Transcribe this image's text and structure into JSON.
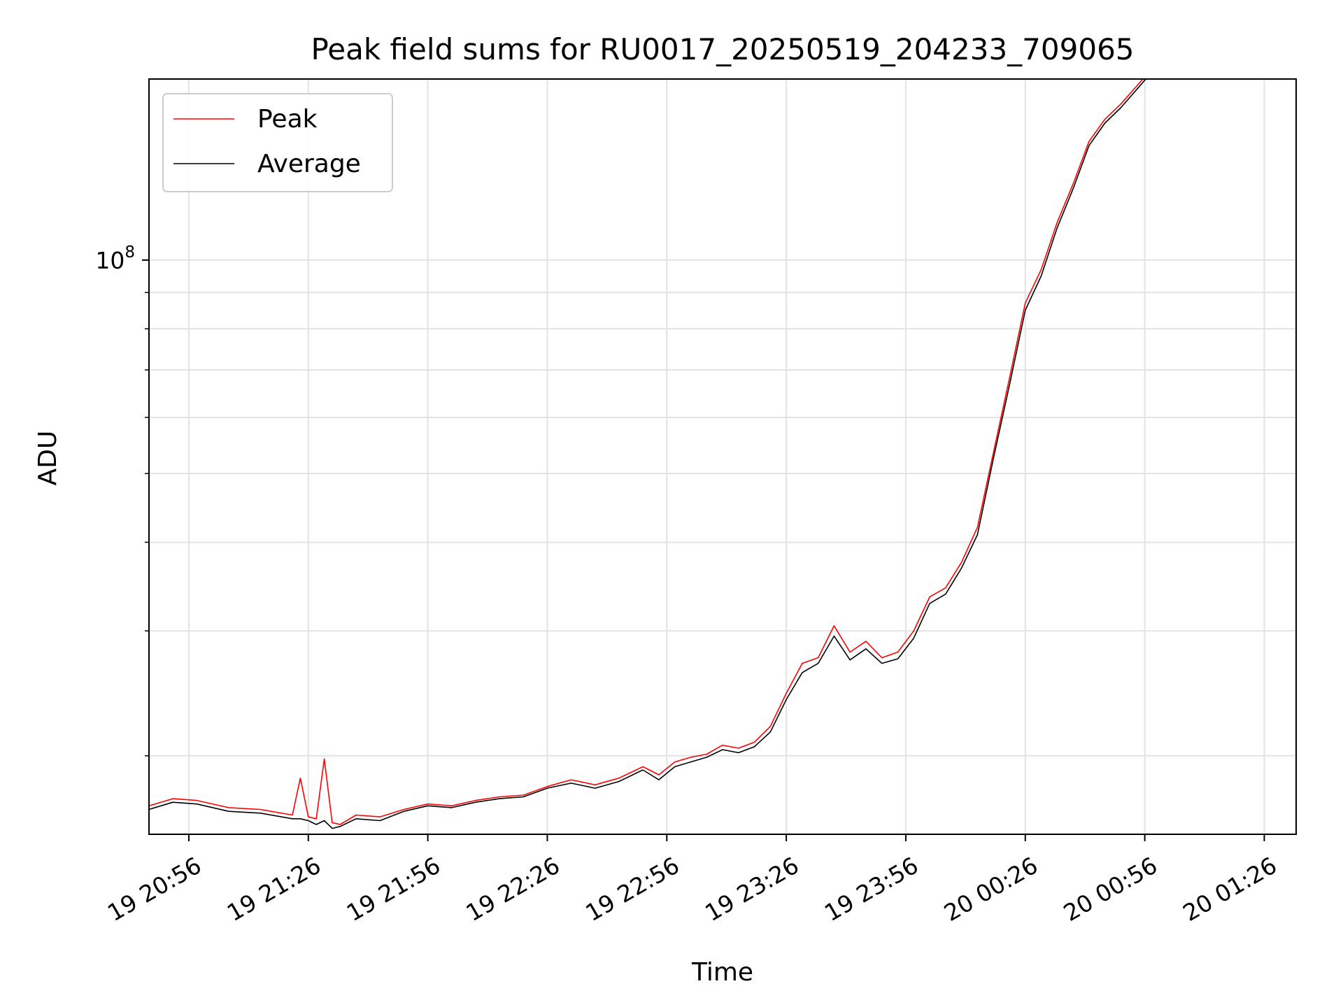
{
  "chart_data": {
    "type": "line",
    "title": "Peak field sums for RU0017_20250519_204233_709065",
    "xlabel": "Time",
    "ylabel": "ADU",
    "y_scale": "log",
    "grid": true,
    "legend_position": "top-left",
    "xlim": [
      "19 20:46",
      "20 01:34"
    ],
    "ylim": [
      15500000,
      180000000
    ],
    "x_ticks": [
      "19 20:56",
      "19 21:26",
      "19 21:56",
      "19 22:26",
      "19 22:56",
      "19 23:26",
      "19 23:56",
      "20 00:26",
      "20 00:56",
      "20 01:26"
    ],
    "y_tick_labels": [
      {
        "base": "10",
        "exp": "8",
        "value": 100000000
      }
    ],
    "y_minor_ticks": [
      20000000,
      30000000,
      40000000,
      50000000,
      60000000,
      70000000,
      80000000,
      90000000
    ],
    "x": [
      "19 20:46",
      "19 20:52",
      "19 20:58",
      "19 21:06",
      "19 21:14",
      "19 21:22",
      "19 21:24",
      "19 21:26",
      "19 21:28",
      "19 21:30",
      "19 21:32",
      "19 21:34",
      "19 21:38",
      "19 21:44",
      "19 21:50",
      "19 21:56",
      "19 22:02",
      "19 22:08",
      "19 22:14",
      "19 22:20",
      "19 22:26",
      "19 22:32",
      "19 22:38",
      "19 22:44",
      "19 22:50",
      "19 22:54",
      "19 22:58",
      "19 23:02",
      "19 23:06",
      "19 23:10",
      "19 23:14",
      "19 23:18",
      "19 23:22",
      "19 23:26",
      "19 23:30",
      "19 23:34",
      "19 23:38",
      "19 23:42",
      "19 23:46",
      "19 23:50",
      "19 23:54",
      "19 23:58",
      "20 00:02",
      "20 00:06",
      "20 00:10",
      "20 00:14",
      "20 00:18",
      "20 00:22",
      "20 00:26",
      "20 00:30",
      "20 00:34",
      "20 00:38",
      "20 00:42",
      "20 00:46",
      "20 00:50",
      "20 00:54",
      "20 00:57"
    ],
    "series": [
      {
        "name": "Peak",
        "color": "#ff0000",
        "values": [
          17000000,
          17400000,
          17300000,
          16900000,
          16800000,
          16500000,
          18600000,
          16400000,
          16300000,
          19800000,
          16100000,
          16000000,
          16500000,
          16400000,
          16800000,
          17100000,
          17000000,
          17300000,
          17500000,
          17600000,
          18100000,
          18500000,
          18200000,
          18600000,
          19300000,
          18800000,
          19600000,
          19900000,
          20100000,
          20700000,
          20500000,
          20900000,
          22000000,
          24500000,
          27000000,
          27500000,
          30500000,
          28000000,
          29000000,
          27500000,
          28000000,
          30000000,
          33500000,
          34500000,
          37500000,
          42000000,
          53500000,
          68000000,
          87000000,
          97000000,
          113000000,
          128000000,
          147000000,
          158000000,
          166000000,
          176000000,
          184000000
        ]
      },
      {
        "name": "Average",
        "color": "#000000",
        "values": [
          16800000,
          17200000,
          17100000,
          16700000,
          16600000,
          16300000,
          16300000,
          16200000,
          16000000,
          16200000,
          15800000,
          15900000,
          16300000,
          16200000,
          16700000,
          17000000,
          16900000,
          17200000,
          17400000,
          17500000,
          18000000,
          18300000,
          18000000,
          18400000,
          19100000,
          18500000,
          19300000,
          19600000,
          19900000,
          20400000,
          20200000,
          20600000,
          21600000,
          24000000,
          26200000,
          27000000,
          29500000,
          27300000,
          28300000,
          27000000,
          27400000,
          29300000,
          32800000,
          33800000,
          36800000,
          41000000,
          52500000,
          66500000,
          85000000,
          95000000,
          111000000,
          126000000,
          145000000,
          156000000,
          164000000,
          174000000,
          182000000
        ]
      }
    ]
  }
}
